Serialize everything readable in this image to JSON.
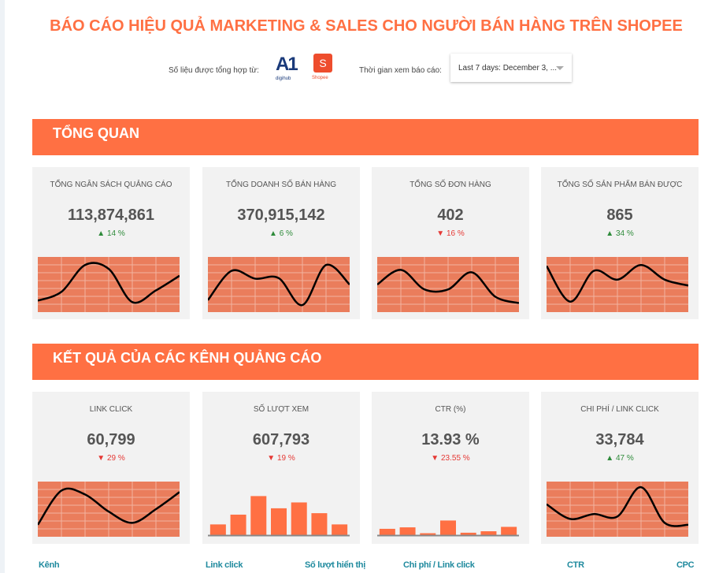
{
  "title": "BÁO CÁO HIỆU QUẢ MARKETING & SALES CHO NGƯỜI BÁN HÀNG TRÊN SHOPEE",
  "source_label": "Số liệu được tổng hợp từ:",
  "logos": {
    "a1": "A1",
    "a1_sub": "digihub",
    "shopee": "S",
    "shopee_sub": "Shopee"
  },
  "time_label": "Thời gian xem báo cáo:",
  "date_range": "Last 7 days: December 3, ...",
  "colors": {
    "accent": "#ff7043",
    "chart_bg": "#ea7d5c",
    "up": "#2e8b3a",
    "down": "#e53935"
  },
  "sections": [
    "TỔNG QUAN",
    "KẾT QUẢ CỦA CÁC KÊNH QUẢNG CÁO"
  ],
  "cards": [
    {
      "label": "TỔNG NGÂN SÁCH QUẢNG CÁO",
      "value": "113,874,861",
      "change": "14 %",
      "dir": "up",
      "chart": "line",
      "series": [
        17,
        35,
        90,
        82,
        14,
        38,
        68
      ]
    },
    {
      "label": "TỔNG DOANH SỐ BÁN HÀNG",
      "value": "370,915,142",
      "change": "6 %",
      "dir": "up",
      "chart": "line",
      "series": [
        18,
        78,
        62,
        63,
        8,
        90,
        50
      ]
    },
    {
      "label": "TỔNG SỐ ĐƠN HÀNG",
      "value": "402",
      "change": "16 %",
      "dir": "down",
      "chart": "line",
      "series": [
        50,
        80,
        40,
        40,
        75,
        25,
        12
      ]
    },
    {
      "label": "TỔNG SỐ SẢN PHẨM BÁN ĐƯỢC",
      "value": "865",
      "change": "34 %",
      "dir": "up",
      "chart": "line",
      "series": [
        88,
        15,
        78,
        60,
        90,
        60,
        48
      ]
    },
    {
      "label": "LINK CLICK",
      "value": "60,799",
      "change": "29 %",
      "dir": "down",
      "chart": "line",
      "series": [
        18,
        88,
        80,
        45,
        22,
        50,
        85
      ]
    },
    {
      "label": "SỐ LƯỢT XEM",
      "value": "607,793",
      "change": "19 %",
      "dir": "down",
      "chart": "bar",
      "series": [
        22,
        42,
        80,
        55,
        67,
        45,
        22
      ]
    },
    {
      "label": "CTR (%)",
      "value": "13.93 %",
      "change": "23.55 %",
      "dir": "down",
      "chart": "bar",
      "series": [
        13,
        16,
        4,
        30,
        5,
        8,
        17
      ]
    },
    {
      "label": "CHI PHÍ / LINK CLICK",
      "value": "33,784",
      "change": "47 %",
      "dir": "up",
      "chart": "line",
      "series": [
        60,
        30,
        40,
        35,
        95,
        22,
        18
      ]
    }
  ],
  "table_headers": [
    "Kênh",
    "Link click",
    "Số lượt hiển thị",
    "Chi phí / Link click",
    "CTR",
    "CPC"
  ]
}
